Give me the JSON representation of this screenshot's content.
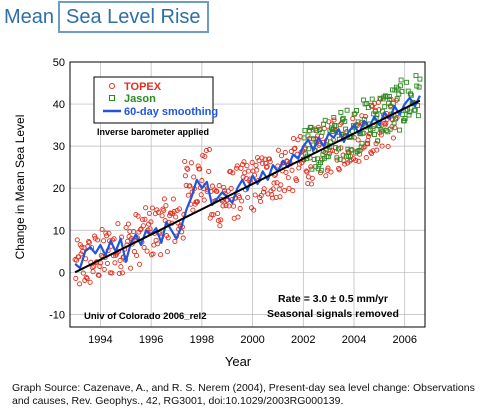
{
  "header": {
    "title_part1": "Mean",
    "title_part2": "Sea Level Rise"
  },
  "chart_data": {
    "type": "scatter",
    "title": "Mean Sea Level Rise",
    "xlabel": "Year",
    "ylabel": "Change in Mean Sea Level",
    "xlim": [
      1992.8,
      2006.8
    ],
    "ylim": [
      -13,
      50
    ],
    "x_ticks": [
      1994,
      1996,
      1998,
      2000,
      2002,
      2004,
      2006
    ],
    "y_ticks": [
      -10,
      0,
      10,
      20,
      30,
      40,
      50
    ],
    "grid": true,
    "legend_position": "top-left",
    "series": [
      {
        "name": "TOPEX",
        "marker": "circle",
        "color": "#e03020",
        "x_range": [
          1993.0,
          2005.7
        ],
        "trend_start": 1,
        "trend_end": 37
      },
      {
        "name": "Jason",
        "marker": "square",
        "color": "#2a8a1e",
        "x_range": [
          2002.0,
          2006.6
        ],
        "trend_start": 28,
        "trend_end": 42
      },
      {
        "name": "60-day smoothing",
        "marker": "line",
        "color": "#2255dd"
      }
    ],
    "trend_line": {
      "x": [
        1993.0,
        2006.6
      ],
      "y": [
        0,
        40.8
      ],
      "color": "#000000"
    },
    "smoothing_points": [
      [
        1993.0,
        2.0
      ],
      [
        1993.2,
        1.0
      ],
      [
        1993.4,
        5.0
      ],
      [
        1993.6,
        6.0
      ],
      [
        1993.8,
        4.5
      ],
      [
        1994.0,
        6.5
      ],
      [
        1994.2,
        4.0
      ],
      [
        1994.4,
        7.5
      ],
      [
        1994.6,
        5.0
      ],
      [
        1994.8,
        8.0
      ],
      [
        1995.0,
        2.5
      ],
      [
        1995.2,
        7.0
      ],
      [
        1995.4,
        9.0
      ],
      [
        1995.6,
        6.5
      ],
      [
        1995.8,
        10.0
      ],
      [
        1996.0,
        9.0
      ],
      [
        1996.2,
        10.5
      ],
      [
        1996.4,
        7.0
      ],
      [
        1996.6,
        12.0
      ],
      [
        1996.8,
        10.0
      ],
      [
        1997.0,
        8.0
      ],
      [
        1997.2,
        11.0
      ],
      [
        1997.4,
        15.0
      ],
      [
        1997.6,
        18.0
      ],
      [
        1997.8,
        22.0
      ],
      [
        1998.0,
        20.0
      ],
      [
        1998.2,
        21.5
      ],
      [
        1998.4,
        16.0
      ],
      [
        1998.6,
        17.5
      ],
      [
        1998.8,
        19.0
      ],
      [
        1999.0,
        18.0
      ],
      [
        1999.2,
        16.5
      ],
      [
        1999.4,
        20.0
      ],
      [
        1999.6,
        22.0
      ],
      [
        1999.8,
        19.5
      ],
      [
        2000.0,
        23.0
      ],
      [
        2000.2,
        21.0
      ],
      [
        2000.4,
        24.0
      ],
      [
        2000.6,
        22.0
      ],
      [
        2000.8,
        25.5
      ],
      [
        2001.0,
        24.0
      ],
      [
        2001.2,
        26.5
      ],
      [
        2001.4,
        25.0
      ],
      [
        2001.6,
        28.0
      ],
      [
        2001.8,
        27.0
      ],
      [
        2002.0,
        30.0
      ],
      [
        2002.2,
        31.5
      ],
      [
        2002.4,
        29.0
      ],
      [
        2002.6,
        32.0
      ],
      [
        2002.8,
        30.0
      ],
      [
        2003.0,
        33.0
      ],
      [
        2003.2,
        32.0
      ],
      [
        2003.4,
        34.0
      ],
      [
        2003.6,
        31.0
      ],
      [
        2003.8,
        33.5
      ],
      [
        2004.0,
        35.0
      ],
      [
        2004.2,
        33.0
      ],
      [
        2004.4,
        36.0
      ],
      [
        2004.6,
        34.5
      ],
      [
        2004.8,
        37.0
      ],
      [
        2005.0,
        35.0
      ],
      [
        2005.2,
        38.0
      ],
      [
        2005.4,
        36.5
      ],
      [
        2005.6,
        39.5
      ],
      [
        2005.8,
        37.5
      ],
      [
        2006.0,
        40.0
      ],
      [
        2006.2,
        41.5
      ],
      [
        2006.4,
        39.5
      ],
      [
        2006.6,
        42.0
      ]
    ],
    "annotations": {
      "barometer": "Inverse barometer applied",
      "credit": "Univ of Colorado 2006_rel2",
      "rate": "Rate = 3.0 ± 0.5 mm/yr",
      "seasonal": "Seasonal signals removed"
    }
  },
  "source": "Graph Source:  Cazenave, A., and R. S. Nerem (2004), Present-day sea level change: Observations and causes, Rev. Geophys., 42, RG3001, doi:10.1029/2003RG000139."
}
